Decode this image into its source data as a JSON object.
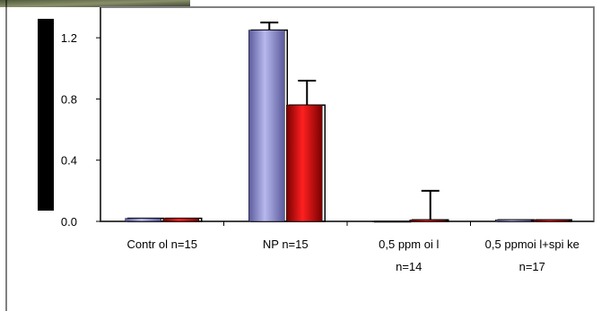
{
  "chart_data": {
    "type": "bar",
    "categories": [
      {
        "lines": [
          "Contr ol      n=15"
        ]
      },
      {
        "lines": [
          "NP        n=15"
        ]
      },
      {
        "lines": [
          "0,5 ppm    oi l",
          "n=14"
        ]
      },
      {
        "lines": [
          "0,5 ppmoi l+spi ke",
          "n=17"
        ]
      }
    ],
    "series": [
      {
        "color": "#8c8cc8",
        "values": [
          0.02,
          1.25,
          0.0,
          0.01
        ],
        "errors": [
          0.0,
          0.05,
          0.0,
          0.0
        ]
      },
      {
        "color": "#c00000",
        "values": [
          0.02,
          0.76,
          0.01,
          0.01
        ],
        "errors": [
          0.0,
          0.16,
          0.19,
          0.0
        ]
      }
    ],
    "yticks": [
      "0.0",
      "0.4",
      "0.8",
      "1.2"
    ],
    "ylim": [
      0,
      1.4
    ],
    "title": "",
    "xlabel": "",
    "ylabel": "",
    "grid": false
  }
}
